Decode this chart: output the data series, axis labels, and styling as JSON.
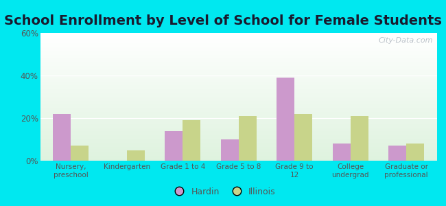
{
  "title": "School Enrollment by Level of School for Female Students",
  "categories": [
    "Nursery,\npreschool",
    "Kindergarten",
    "Grade 1 to 4",
    "Grade 5 to 8",
    "Grade 9 to\n12",
    "College\nundergrad",
    "Graduate or\nprofessional"
  ],
  "hardin": [
    22,
    0,
    14,
    10,
    39,
    8,
    7
  ],
  "illinois": [
    7,
    5,
    19,
    21,
    22,
    21,
    8
  ],
  "hardin_color": "#cc99cc",
  "illinois_color": "#c8d48a",
  "background_outer": "#00e8f0",
  "ylim": [
    0,
    60
  ],
  "yticks": [
    0,
    20,
    40,
    60
  ],
  "ytick_labels": [
    "0%",
    "20%",
    "40%",
    "60%"
  ],
  "legend_hardin": "Hardin",
  "legend_illinois": "Illinois",
  "bar_width": 0.32,
  "title_fontsize": 14,
  "title_color": "#1a1a2e",
  "tick_color": "#555555",
  "watermark": "City-Data.com"
}
